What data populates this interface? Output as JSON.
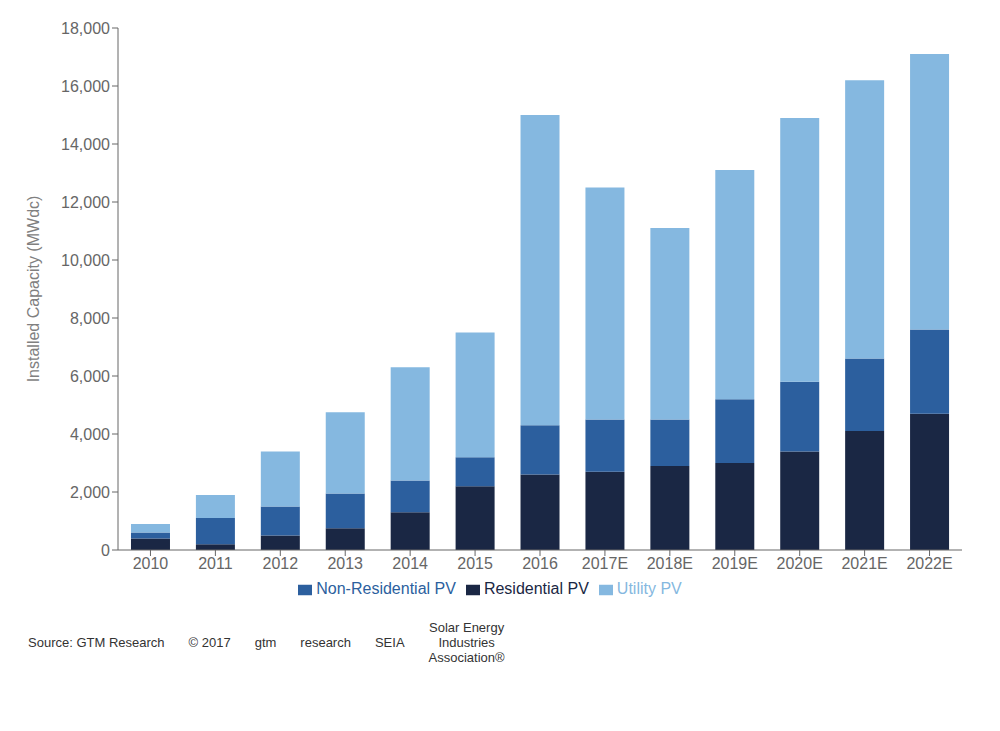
{
  "chart_data": {
    "type": "bar",
    "stacked": true,
    "grid": false,
    "legend": "bottom",
    "ylabel": "Installed Capacity (MWdc)",
    "categories": [
      "2010",
      "2011",
      "2012",
      "2013",
      "2014",
      "2015",
      "2016",
      "2017E",
      "2018E",
      "2019E",
      "2020E",
      "2021E",
      "2022E"
    ],
    "series": [
      {
        "name": "Residential PV",
        "color": "#1a2744",
        "values": [
          400,
          200,
          500,
          750,
          1300,
          2200,
          2600,
          2700,
          2900,
          3000,
          3400,
          4100,
          4700
        ]
      },
      {
        "name": "Non-Residential PV",
        "color": "#2c5f9e",
        "values": [
          200,
          900,
          1000,
          1200,
          1100,
          1000,
          1700,
          1800,
          1600,
          2200,
          2400,
          2500,
          2900
        ]
      },
      {
        "name": "Utility PV",
        "color": "#85b8e0",
        "values": [
          300,
          800,
          1900,
          2800,
          3900,
          4300,
          10700,
          8000,
          6600,
          7900,
          9100,
          9600,
          9500
        ]
      }
    ],
    "ylim": [
      0,
      18000
    ],
    "yticks": [
      0,
      {
        "value": 2000,
        "label": "2,000"
      },
      {
        "value": 4000,
        "label": "4,000"
      },
      {
        "value": 6000,
        "label": "6,000"
      },
      {
        "value": 8000,
        "label": "8,000"
      },
      {
        "value": 10000,
        "label": "10,000"
      },
      {
        "value": 12000,
        "label": "12,000"
      },
      {
        "value": 14000,
        "label": "14,000"
      },
      {
        "value": 16000,
        "label": "16,000"
      },
      {
        "value": 18000,
        "label": "18,000"
      }
    ],
    "annotations": [
      "Source: GTM Research",
      "© 2017",
      "gtm",
      "research",
      "SEIA",
      "Solar Energy\nIndustries\nAssociation®"
    ]
  }
}
